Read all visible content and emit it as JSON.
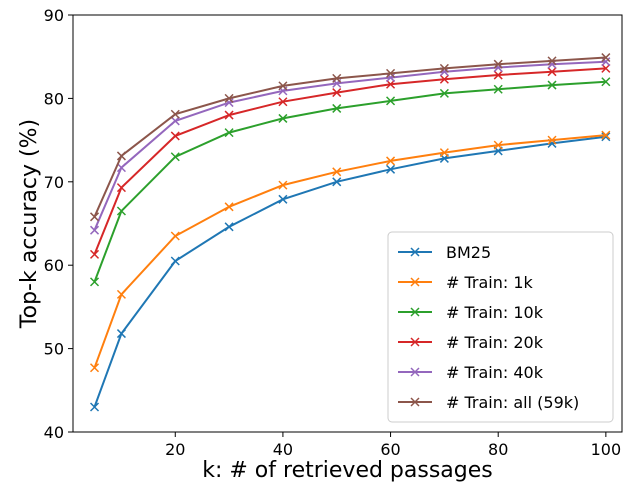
{
  "chart_data": {
    "type": "line",
    "title": "",
    "xlabel": "k: # of retrieved passages",
    "ylabel": "Top-k accuracy (%)",
    "xlim": [
      1,
      103
    ],
    "ylim": [
      40,
      90
    ],
    "xticks": [
      20,
      40,
      60,
      80,
      100
    ],
    "yticks": [
      40,
      50,
      60,
      70,
      80,
      90
    ],
    "grid": false,
    "legend_position": "lower-right",
    "marker": "x",
    "x": [
      5,
      10,
      20,
      30,
      40,
      50,
      60,
      70,
      80,
      90,
      100
    ],
    "series": [
      {
        "name": "BM25",
        "color": "#1f77b4",
        "values": [
          43.0,
          51.8,
          60.5,
          64.6,
          67.9,
          70.0,
          71.5,
          72.8,
          73.7,
          74.6,
          75.4
        ]
      },
      {
        "name": "# Train: 1k",
        "color": "#ff7f0e",
        "values": [
          47.7,
          56.5,
          63.5,
          67.0,
          69.6,
          71.2,
          72.5,
          73.5,
          74.4,
          75.0,
          75.6
        ]
      },
      {
        "name": "# Train: 10k",
        "color": "#2ca02c",
        "values": [
          58.0,
          66.5,
          73.0,
          75.9,
          77.6,
          78.8,
          79.7,
          80.6,
          81.1,
          81.6,
          82.0
        ]
      },
      {
        "name": "# Train: 20k",
        "color": "#d62728",
        "values": [
          61.3,
          69.3,
          75.5,
          78.0,
          79.6,
          80.7,
          81.7,
          82.3,
          82.8,
          83.2,
          83.6
        ]
      },
      {
        "name": "# Train: 40k",
        "color": "#9467bd",
        "values": [
          64.2,
          71.7,
          77.3,
          79.5,
          80.9,
          81.8,
          82.5,
          83.2,
          83.7,
          84.1,
          84.4
        ]
      },
      {
        "name": "# Train: all (59k)",
        "color": "#8c564b",
        "values": [
          65.8,
          73.1,
          78.1,
          80.0,
          81.5,
          82.4,
          83.0,
          83.6,
          84.1,
          84.5,
          84.9
        ]
      }
    ]
  }
}
